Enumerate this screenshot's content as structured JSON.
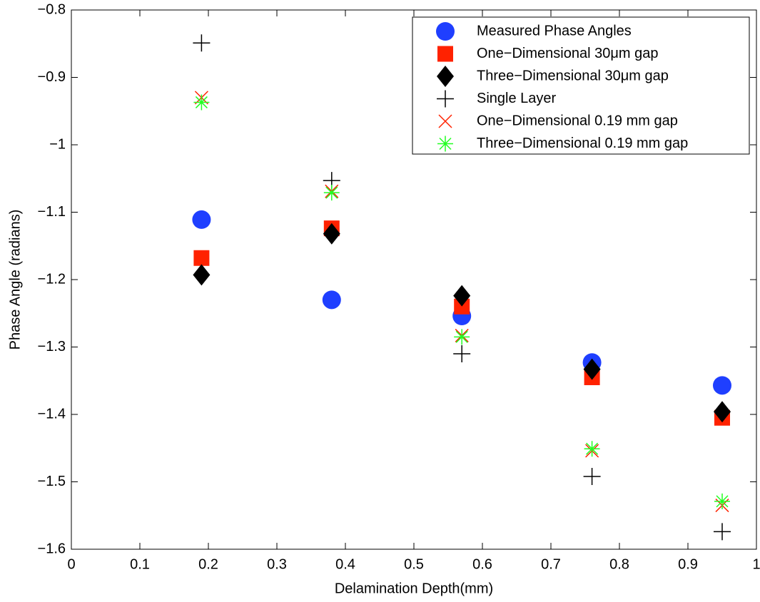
{
  "chart_data": {
    "type": "scatter",
    "xlabel": "Delamination Depth(mm)",
    "ylabel": "Phase Angle (radians)",
    "x": [
      0.19,
      0.38,
      0.57,
      0.76,
      0.95
    ],
    "series": [
      {
        "name": "Measured Phase Angles",
        "color": "#1f3fff",
        "marker": "circle",
        "values": [
          -1.111,
          -1.23,
          -1.254,
          -1.323,
          -1.357
        ]
      },
      {
        "name": "One−Dimensional 30μm gap",
        "color": "#ff2200",
        "marker": "square",
        "values": [
          -1.168,
          -1.124,
          -1.24,
          -1.345,
          -1.405
        ]
      },
      {
        "name": "Three−Dimensional 30μm gap",
        "color": "#000000",
        "marker": "diamond",
        "values": [
          -1.193,
          -1.132,
          -1.224,
          -1.333,
          -1.396
        ]
      },
      {
        "name": "Single Layer",
        "color": "#000000",
        "marker": "plus",
        "values": [
          -0.849,
          -1.053,
          -1.31,
          -1.492,
          -1.574
        ]
      },
      {
        "name": "One−Dimensional 0.19 mm gap",
        "color": "#ff2200",
        "marker": "x",
        "values": [
          -0.93,
          -1.069,
          -1.283,
          -1.454,
          -1.535
        ]
      },
      {
        "name": "Three−Dimensional 0.19 mm gap",
        "color": "#22ff22",
        "marker": "star",
        "values": [
          -0.937,
          -1.071,
          -1.285,
          -1.451,
          -1.529
        ]
      }
    ],
    "xlim": [
      0,
      1
    ],
    "xticks": [
      0,
      0.1,
      0.2,
      0.3,
      0.4,
      0.5,
      0.6,
      0.7,
      0.8,
      0.9,
      1
    ],
    "ylim": [
      -1.6,
      -0.8
    ],
    "yticks": [
      {
        "value": -1.6,
        "label": "−1.6"
      },
      {
        "value": -1.5,
        "label": "−1.5"
      },
      {
        "value": -1.4,
        "label": "−1.4"
      },
      {
        "value": -1.3,
        "label": "−1.3"
      },
      {
        "value": -1.2,
        "label": "−1.2"
      },
      {
        "value": -1.1,
        "label": "−1.1"
      },
      {
        "value": -1,
        "label": "−1"
      },
      {
        "value": -0.9,
        "label": "−0.9"
      },
      {
        "value": -0.8,
        "label": "−0.8"
      }
    ],
    "grid": false,
    "legend": "upper right"
  }
}
